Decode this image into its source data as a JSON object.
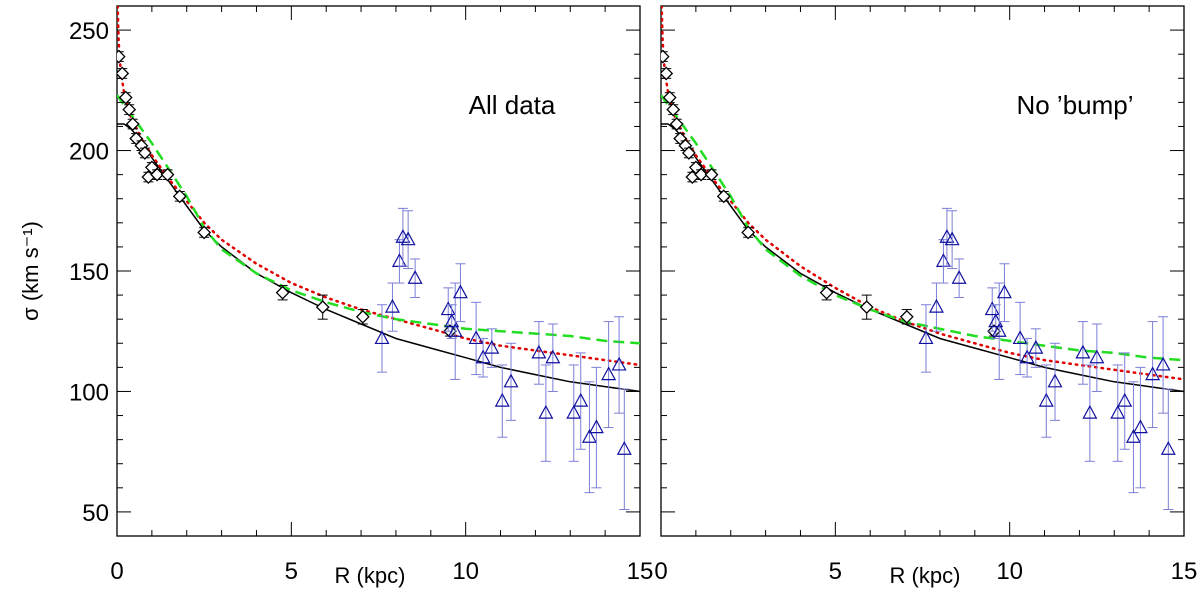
{
  "chart_data": [
    {
      "type": "scatter",
      "panel_label": "All data",
      "xlabel": "R (kpc)",
      "ylabel": "σ (km s⁻¹)",
      "xlim": [
        0,
        15
      ],
      "ylim": [
        40,
        260
      ],
      "x_ticks": [
        0,
        5,
        10,
        15
      ],
      "x_tick_labels": [
        "0",
        "5",
        "10",
        "15"
      ],
      "y_ticks": [
        50,
        100,
        150,
        200,
        250
      ],
      "grid": false,
      "legend": "none",
      "series": [
        {
          "kind": "points",
          "marker": "diamond",
          "color": "#000000",
          "points": [
            {
              "x": 0.05,
              "y": 239,
              "err": 2
            },
            {
              "x": 0.15,
              "y": 232,
              "err": 2
            },
            {
              "x": 0.25,
              "y": 222,
              "err": 2
            },
            {
              "x": 0.35,
              "y": 217,
              "err": 2
            },
            {
              "x": 0.45,
              "y": 211,
              "err": 2
            },
            {
              "x": 0.55,
              "y": 205,
              "err": 2
            },
            {
              "x": 0.7,
              "y": 202,
              "err": 2
            },
            {
              "x": 0.8,
              "y": 199,
              "err": 2
            },
            {
              "x": 0.9,
              "y": 189,
              "err": 2
            },
            {
              "x": 1.0,
              "y": 193,
              "err": 2
            },
            {
              "x": 1.15,
              "y": 190,
              "err": 2
            },
            {
              "x": 1.45,
              "y": 190,
              "err": 2
            },
            {
              "x": 1.8,
              "y": 181,
              "err": 2
            },
            {
              "x": 2.5,
              "y": 166,
              "err": 2
            },
            {
              "x": 4.75,
              "y": 141,
              "err": 3
            },
            {
              "x": 5.9,
              "y": 135,
              "err": 5
            },
            {
              "x": 7.05,
              "y": 131,
              "err": 3
            },
            {
              "x": 9.55,
              "y": 125,
              "err": 2
            }
          ]
        },
        {
          "kind": "points",
          "marker": "triangle",
          "color": "#1010a0",
          "errcolor": "#7b7fd6",
          "points": [
            {
              "x": 7.6,
              "y": 122,
              "err": 14
            },
            {
              "x": 7.9,
              "y": 135,
              "err": 10
            },
            {
              "x": 8.1,
              "y": 154,
              "err": 9
            },
            {
              "x": 8.2,
              "y": 164,
              "err": 12
            },
            {
              "x": 8.35,
              "y": 163,
              "err": 12
            },
            {
              "x": 8.55,
              "y": 147,
              "err": 8
            },
            {
              "x": 9.5,
              "y": 134,
              "err": 9
            },
            {
              "x": 9.6,
              "y": 129,
              "err": 7
            },
            {
              "x": 9.7,
              "y": 125,
              "err": 20
            },
            {
              "x": 9.85,
              "y": 141,
              "err": 12
            },
            {
              "x": 10.3,
              "y": 122,
              "err": 15
            },
            {
              "x": 10.5,
              "y": 114,
              "err": 8
            },
            {
              "x": 10.75,
              "y": 118,
              "err": 8
            },
            {
              "x": 11.05,
              "y": 96,
              "err": 15
            },
            {
              "x": 11.3,
              "y": 104,
              "err": 16
            },
            {
              "x": 12.1,
              "y": 116,
              "err": 13
            },
            {
              "x": 12.3,
              "y": 91,
              "err": 20
            },
            {
              "x": 12.5,
              "y": 114,
              "err": 14
            },
            {
              "x": 13.1,
              "y": 91,
              "err": 20
            },
            {
              "x": 13.3,
              "y": 96,
              "err": 20
            },
            {
              "x": 13.55,
              "y": 81,
              "err": 23
            },
            {
              "x": 13.75,
              "y": 85,
              "err": 25
            },
            {
              "x": 14.1,
              "y": 107,
              "err": 22
            },
            {
              "x": 14.4,
              "y": 111,
              "err": 20
            },
            {
              "x": 14.55,
              "y": 76,
              "err": 25
            }
          ]
        },
        {
          "kind": "line",
          "style": "solid",
          "color": "#000000",
          "points": [
            [
              0,
              211
            ],
            [
              0.2,
              211
            ],
            [
              0.4,
              209
            ],
            [
              0.7,
              204
            ],
            [
              1,
              197
            ],
            [
              1.5,
              187
            ],
            [
              2,
              177
            ],
            [
              2.5,
              167
            ],
            [
              3,
              160
            ],
            [
              4,
              149
            ],
            [
              5,
              141
            ],
            [
              6,
              134
            ],
            [
              7,
              128
            ],
            [
              8,
              122
            ],
            [
              9,
              118
            ],
            [
              10,
              114
            ],
            [
              11,
              110
            ],
            [
              12,
              107
            ],
            [
              13,
              104
            ],
            [
              14,
              102
            ],
            [
              15,
              100
            ]
          ]
        },
        {
          "kind": "line",
          "style": "dotted",
          "color": "#e00000",
          "points": [
            [
              0.02,
              260
            ],
            [
              0.05,
              245
            ],
            [
              0.1,
              234
            ],
            [
              0.2,
              224
            ],
            [
              0.4,
              214
            ],
            [
              0.7,
              205
            ],
            [
              1,
              198
            ],
            [
              1.5,
              188
            ],
            [
              2,
              179
            ],
            [
              2.5,
              170
            ],
            [
              3,
              163
            ],
            [
              4,
              153
            ],
            [
              5,
              145
            ],
            [
              6,
              139
            ],
            [
              7,
              134
            ],
            [
              8,
              130
            ],
            [
              9,
              126
            ],
            [
              10,
              122
            ],
            [
              11,
              119
            ],
            [
              12,
              117
            ],
            [
              13,
              115
            ],
            [
              14,
              113
            ],
            [
              15,
              111
            ]
          ]
        },
        {
          "kind": "line",
          "style": "dashed",
          "color": "#22dd22",
          "points": [
            [
              0,
              223
            ],
            [
              0.3,
              217
            ],
            [
              0.6,
              211
            ],
            [
              1,
              203
            ],
            [
              1.5,
              192
            ],
            [
              2,
              181
            ],
            [
              2.5,
              168
            ],
            [
              3,
              159
            ],
            [
              4,
              149
            ],
            [
              5,
              142
            ],
            [
              6,
              137
            ],
            [
              7,
              133
            ],
            [
              8,
              130
            ],
            [
              9,
              128
            ],
            [
              10,
              126
            ],
            [
              11,
              125
            ],
            [
              12,
              124
            ],
            [
              13,
              123
            ],
            [
              14,
              121
            ],
            [
              15,
              120
            ]
          ]
        }
      ]
    },
    {
      "type": "scatter",
      "panel_label": "No ’bump’",
      "xlabel": "R (kpc)",
      "ylabel": "",
      "xlim": [
        0,
        15
      ],
      "ylim": [
        40,
        260
      ],
      "x_ticks": [
        0,
        5,
        10,
        15
      ],
      "x_tick_labels": [
        "0",
        "5",
        "10",
        "15"
      ],
      "y_ticks": [
        50,
        100,
        150,
        200,
        250
      ],
      "grid": false,
      "legend": "none",
      "series": [
        {
          "kind": "points",
          "marker": "diamond",
          "color": "#000000",
          "points": [
            {
              "x": 0.05,
              "y": 239,
              "err": 2
            },
            {
              "x": 0.15,
              "y": 232,
              "err": 2
            },
            {
              "x": 0.25,
              "y": 222,
              "err": 2
            },
            {
              "x": 0.35,
              "y": 217,
              "err": 2
            },
            {
              "x": 0.45,
              "y": 211,
              "err": 2
            },
            {
              "x": 0.55,
              "y": 205,
              "err": 2
            },
            {
              "x": 0.7,
              "y": 202,
              "err": 2
            },
            {
              "x": 0.8,
              "y": 199,
              "err": 2
            },
            {
              "x": 0.9,
              "y": 189,
              "err": 2
            },
            {
              "x": 1.0,
              "y": 193,
              "err": 2
            },
            {
              "x": 1.15,
              "y": 190,
              "err": 2
            },
            {
              "x": 1.45,
              "y": 190,
              "err": 2
            },
            {
              "x": 1.8,
              "y": 181,
              "err": 2
            },
            {
              "x": 2.5,
              "y": 166,
              "err": 2
            },
            {
              "x": 4.75,
              "y": 141,
              "err": 3
            },
            {
              "x": 5.9,
              "y": 135,
              "err": 5
            },
            {
              "x": 7.05,
              "y": 131,
              "err": 3
            },
            {
              "x": 9.55,
              "y": 125,
              "err": 2
            }
          ]
        },
        {
          "kind": "points",
          "marker": "triangle",
          "color": "#1010a0",
          "errcolor": "#7b7fd6",
          "points": [
            {
              "x": 7.6,
              "y": 122,
              "err": 14
            },
            {
              "x": 7.9,
              "y": 135,
              "err": 10
            },
            {
              "x": 8.1,
              "y": 154,
              "err": 9
            },
            {
              "x": 8.2,
              "y": 164,
              "err": 12
            },
            {
              "x": 8.35,
              "y": 163,
              "err": 12
            },
            {
              "x": 8.55,
              "y": 147,
              "err": 8
            },
            {
              "x": 9.5,
              "y": 134,
              "err": 9
            },
            {
              "x": 9.6,
              "y": 129,
              "err": 7
            },
            {
              "x": 9.7,
              "y": 125,
              "err": 20
            },
            {
              "x": 9.85,
              "y": 141,
              "err": 12
            },
            {
              "x": 10.3,
              "y": 122,
              "err": 15
            },
            {
              "x": 10.5,
              "y": 114,
              "err": 8
            },
            {
              "x": 10.75,
              "y": 118,
              "err": 8
            },
            {
              "x": 11.05,
              "y": 96,
              "err": 15
            },
            {
              "x": 11.3,
              "y": 104,
              "err": 16
            },
            {
              "x": 12.1,
              "y": 116,
              "err": 13
            },
            {
              "x": 12.3,
              "y": 91,
              "err": 20
            },
            {
              "x": 12.5,
              "y": 114,
              "err": 14
            },
            {
              "x": 13.1,
              "y": 91,
              "err": 20
            },
            {
              "x": 13.3,
              "y": 96,
              "err": 20
            },
            {
              "x": 13.55,
              "y": 81,
              "err": 23
            },
            {
              "x": 13.75,
              "y": 85,
              "err": 25
            },
            {
              "x": 14.1,
              "y": 107,
              "err": 22
            },
            {
              "x": 14.4,
              "y": 111,
              "err": 20
            },
            {
              "x": 14.55,
              "y": 76,
              "err": 25
            }
          ]
        },
        {
          "kind": "line",
          "style": "solid",
          "color": "#000000",
          "points": [
            [
              0,
              211
            ],
            [
              0.2,
              211
            ],
            [
              0.4,
              209
            ],
            [
              0.7,
              204
            ],
            [
              1,
              197
            ],
            [
              1.5,
              187
            ],
            [
              2,
              177
            ],
            [
              2.5,
              167
            ],
            [
              3,
              160
            ],
            [
              4,
              149
            ],
            [
              5,
              141
            ],
            [
              6,
              134
            ],
            [
              7,
              128
            ],
            [
              8,
              122
            ],
            [
              9,
              118
            ],
            [
              10,
              114
            ],
            [
              11,
              110
            ],
            [
              12,
              107
            ],
            [
              13,
              104
            ],
            [
              14,
              102
            ],
            [
              15,
              100
            ]
          ]
        },
        {
          "kind": "line",
          "style": "dotted",
          "color": "#e00000",
          "points": [
            [
              0.02,
              260
            ],
            [
              0.05,
              245
            ],
            [
              0.1,
              234
            ],
            [
              0.2,
              224
            ],
            [
              0.4,
              214
            ],
            [
              0.7,
              205
            ],
            [
              1,
              198
            ],
            [
              1.5,
              188
            ],
            [
              2,
              179
            ],
            [
              2.5,
              170
            ],
            [
              3,
              163
            ],
            [
              4,
              152
            ],
            [
              5,
              143
            ],
            [
              6,
              135
            ],
            [
              7,
              129
            ],
            [
              8,
              124
            ],
            [
              9,
              120
            ],
            [
              10,
              116
            ],
            [
              11,
              113
            ],
            [
              12,
              111
            ],
            [
              13,
              109
            ],
            [
              14,
              107
            ],
            [
              15,
              105
            ]
          ]
        },
        {
          "kind": "line",
          "style": "dashed",
          "color": "#22dd22",
          "points": [
            [
              0,
              223
            ],
            [
              0.3,
              217
            ],
            [
              0.6,
              211
            ],
            [
              1,
              203
            ],
            [
              1.5,
              192
            ],
            [
              2,
              181
            ],
            [
              2.5,
              168
            ],
            [
              3,
              159
            ],
            [
              4,
              148
            ],
            [
              5,
              140
            ],
            [
              6,
              134
            ],
            [
              7,
              129
            ],
            [
              8,
              126
            ],
            [
              9,
              123
            ],
            [
              10,
              121
            ],
            [
              11,
              119
            ],
            [
              12,
              117
            ],
            [
              13,
              116
            ],
            [
              14,
              114
            ],
            [
              15,
              113
            ]
          ]
        }
      ]
    }
  ]
}
